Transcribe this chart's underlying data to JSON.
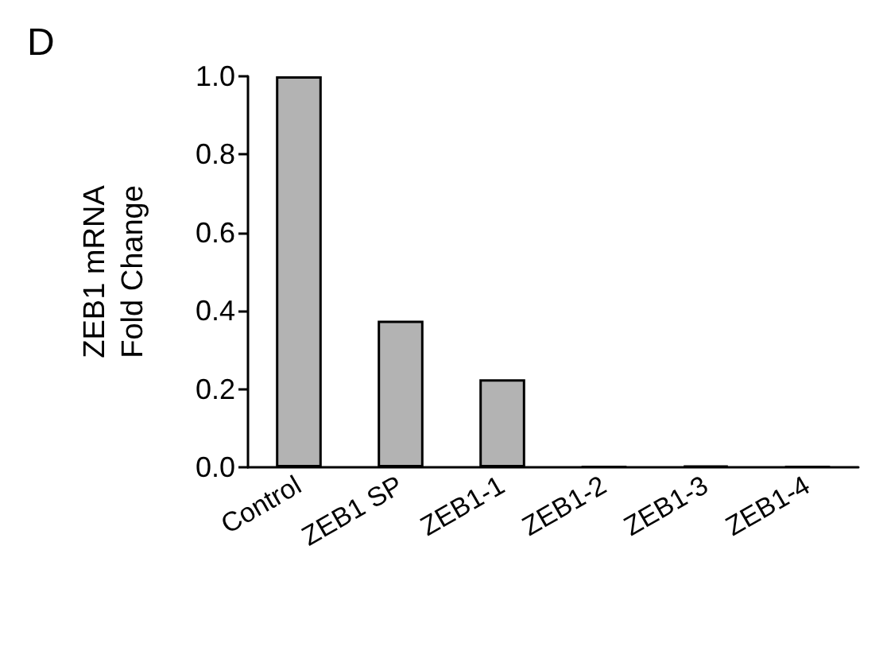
{
  "chart_data": {
    "type": "bar",
    "title": "D",
    "ylabel": "ZEB1 mRNA\nFold Change",
    "categories": [
      "Control",
      "ZEB1 SP",
      "ZEB1-1",
      "ZEB1-2",
      "ZEB1-3",
      "ZEB1-4"
    ],
    "values": [
      1.0,
      0.375,
      0.225,
      0.002,
      0.004,
      0.002
    ],
    "color": "#b3b3b3",
    "ylim": [
      0,
      1
    ],
    "yticks": [
      {
        "value": 0,
        "label": "0.0"
      },
      {
        "value": 0.2,
        "label": "0.2"
      },
      {
        "value": 0.4,
        "label": "0.4"
      },
      {
        "value": 0.6,
        "label": "0.6"
      },
      {
        "value": 0.8,
        "label": "0.8"
      },
      {
        "value": 1,
        "label": "1.0"
      }
    ],
    "grid": false
  }
}
